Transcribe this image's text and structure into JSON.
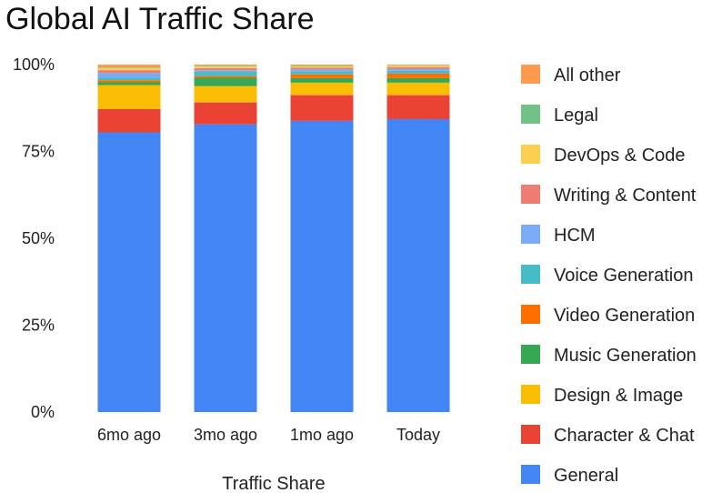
{
  "chart_data": {
    "type": "bar",
    "stacked": true,
    "title": "Global AI Traffic Share",
    "xlabel": "Traffic Share",
    "ylabel": "",
    "ylim": [
      0,
      100
    ],
    "yticks": [
      "0%",
      "25%",
      "50%",
      "75%",
      "100%"
    ],
    "ytick_values": [
      0,
      25,
      50,
      75,
      100
    ],
    "grid": false,
    "legend_position": "right",
    "categories": [
      "6mo ago",
      "3mo ago",
      "1mo ago",
      "Today"
    ],
    "series": [
      {
        "name": "General",
        "color": "#4285F4",
        "values": [
          80.5,
          82.8,
          83.8,
          84.3
        ]
      },
      {
        "name": "Character & Chat",
        "color": "#EA4335",
        "values": [
          6.7,
          6.3,
          7.4,
          6.9
        ]
      },
      {
        "name": "Design & Image",
        "color": "#FBBC04",
        "values": [
          6.9,
          4.7,
          3.6,
          3.6
        ]
      },
      {
        "name": "Music Generation",
        "color": "#34A853",
        "values": [
          0.8,
          2.4,
          1.3,
          1.3
        ]
      },
      {
        "name": "Video Generation",
        "color": "#FF6D01",
        "values": [
          0.6,
          0.5,
          1.1,
          1.3
        ]
      },
      {
        "name": "Voice Generation",
        "color": "#46BDC6",
        "values": [
          0.8,
          1.2,
          0.9,
          0.8
        ]
      },
      {
        "name": "HCM",
        "color": "#7BAAF7",
        "values": [
          1.3,
          0.5,
          0.5,
          0.6
        ]
      },
      {
        "name": "Writing & Content",
        "color": "#F07B72",
        "values": [
          0.8,
          0.6,
          0.5,
          0.5
        ]
      },
      {
        "name": "DevOps & Code",
        "color": "#FCD04F",
        "values": [
          0.6,
          0.5,
          0.4,
          0.4
        ]
      },
      {
        "name": "Legal",
        "color": "#71C287",
        "values": [
          0.2,
          0.2,
          0.2,
          0.1
        ]
      },
      {
        "name": "All other",
        "color": "#FF994D",
        "values": [
          0.8,
          0.3,
          0.3,
          0.2
        ]
      }
    ]
  }
}
